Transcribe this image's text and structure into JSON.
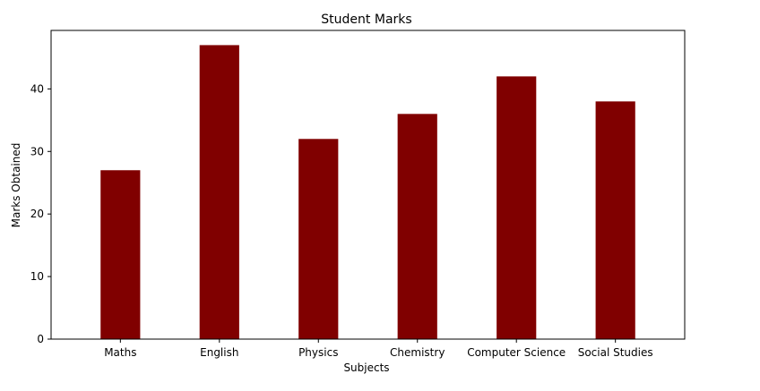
{
  "chart_data": {
    "type": "bar",
    "title": "Student Marks",
    "xlabel": "Subjects",
    "ylabel": "Marks Obtained",
    "categories": [
      "Maths",
      "English",
      "Physics",
      "Chemistry",
      "Computer Science",
      "Social Studies"
    ],
    "values": [
      27,
      47,
      32,
      36,
      42,
      38
    ],
    "ylim": [
      0,
      49.35
    ],
    "yticks": [
      0,
      10,
      20,
      30,
      40
    ],
    "bar_color": "#800000",
    "grid": false,
    "legend": false
  }
}
